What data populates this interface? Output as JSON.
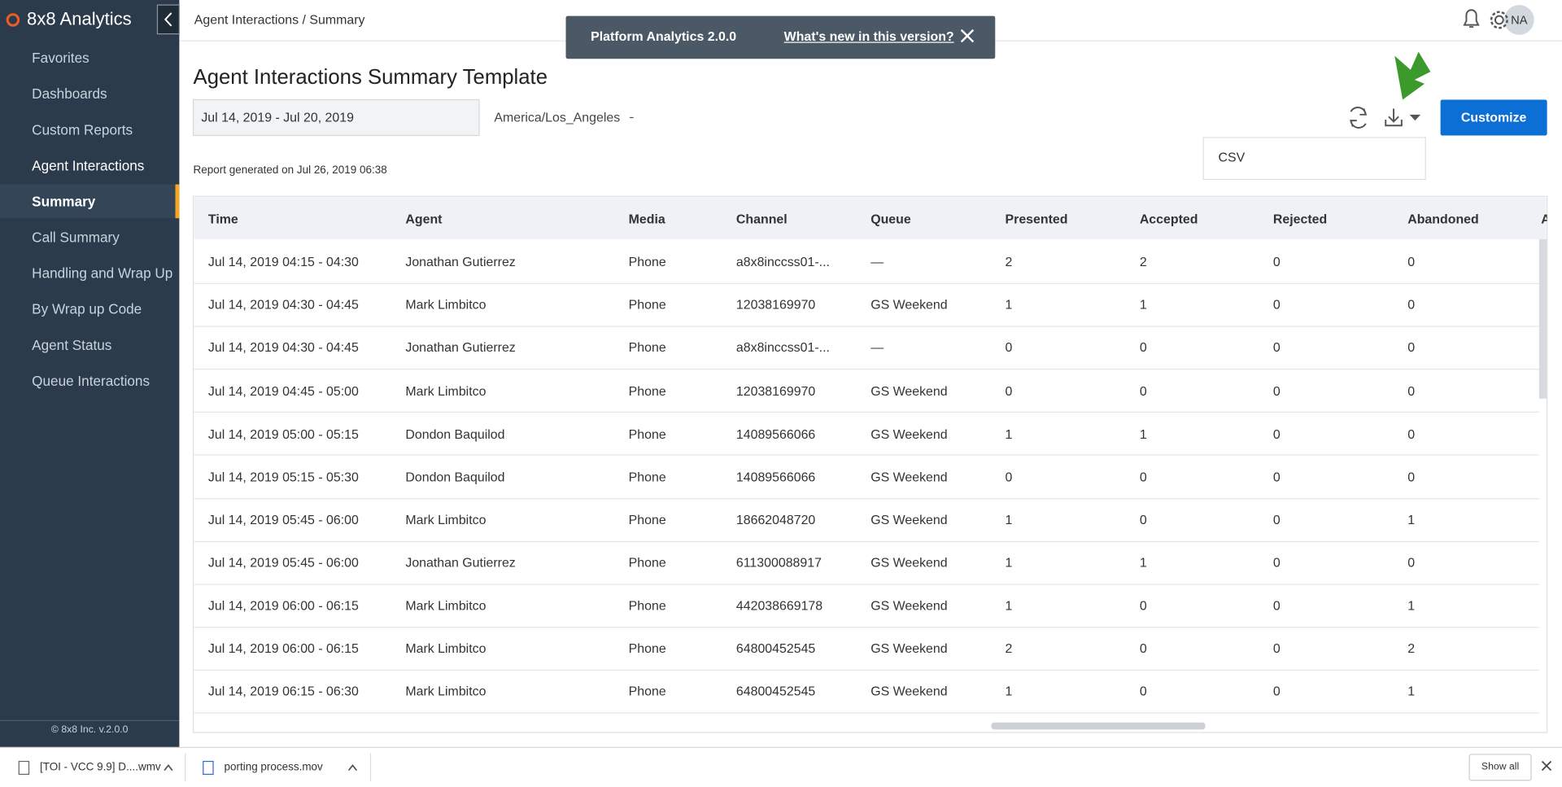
{
  "sidebar": {
    "logo": "8x8 Analytics",
    "items": [
      "Favorites",
      "Dashboards",
      "Custom Reports",
      "Agent Interactions"
    ],
    "sub_items": [
      "Summary",
      "Call Summary",
      "Handling and Wrap Up",
      "By Wrap up Code"
    ],
    "more_items": [
      "Agent Status",
      "Queue Interactions"
    ],
    "footer": "© 8x8 Inc. v.2.0.0"
  },
  "header": {
    "breadcrumb": "Agent Interactions / Summary",
    "avatar": "NA"
  },
  "banner": {
    "title": "Platform Analytics 2.0.0",
    "link": "What's new in this version?"
  },
  "page": {
    "title": "Agent Interactions Summary Template",
    "date_range": "Jul 14, 2019 - Jul 20, 2019",
    "timezone": "America/Los_Angeles",
    "report_generated": "Report generated on Jul 26, 2019 06:38",
    "customize": "Customize",
    "export_option": "CSV"
  },
  "table": {
    "columns": [
      "Time",
      "Agent",
      "Media",
      "Channel",
      "Queue",
      "Presented",
      "Accepted",
      "Rejected",
      "Abandoned",
      "A"
    ],
    "rows": [
      [
        "Jul 14, 2019 04:15 - 04:30",
        "Jonathan Gutierrez",
        "Phone",
        "a8x8inccss01-...",
        "—",
        "2",
        "2",
        "0",
        "0"
      ],
      [
        "Jul 14, 2019 04:30 - 04:45",
        "Mark Limbitco",
        "Phone",
        "12038169970",
        "GS Weekend",
        "1",
        "1",
        "0",
        "0"
      ],
      [
        "Jul 14, 2019 04:30 - 04:45",
        "Jonathan Gutierrez",
        "Phone",
        "a8x8inccss01-...",
        "—",
        "0",
        "0",
        "0",
        "0"
      ],
      [
        "Jul 14, 2019 04:45 - 05:00",
        "Mark Limbitco",
        "Phone",
        "12038169970",
        "GS Weekend",
        "0",
        "0",
        "0",
        "0"
      ],
      [
        "Jul 14, 2019 05:00 - 05:15",
        "Dondon Baquilod",
        "Phone",
        "14089566066",
        "GS Weekend",
        "1",
        "1",
        "0",
        "0"
      ],
      [
        "Jul 14, 2019 05:15 - 05:30",
        "Dondon Baquilod",
        "Phone",
        "14089566066",
        "GS Weekend",
        "0",
        "0",
        "0",
        "0"
      ],
      [
        "Jul 14, 2019 05:45 - 06:00",
        "Mark Limbitco",
        "Phone",
        "18662048720",
        "GS Weekend",
        "1",
        "0",
        "0",
        "1"
      ],
      [
        "Jul 14, 2019 05:45 - 06:00",
        "Jonathan Gutierrez",
        "Phone",
        "611300088917",
        "GS Weekend",
        "1",
        "1",
        "0",
        "0"
      ],
      [
        "Jul 14, 2019 06:00 - 06:15",
        "Mark Limbitco",
        "Phone",
        "442038669178",
        "GS Weekend",
        "1",
        "0",
        "0",
        "1"
      ],
      [
        "Jul 14, 2019 06:00 - 06:15",
        "Mark Limbitco",
        "Phone",
        "64800452545",
        "GS Weekend",
        "2",
        "0",
        "0",
        "2"
      ],
      [
        "Jul 14, 2019 06:15 - 06:30",
        "Mark Limbitco",
        "Phone",
        "64800452545",
        "GS Weekend",
        "1",
        "0",
        "0",
        "1"
      ]
    ]
  },
  "downloads": {
    "files": [
      "[TOI - VCC 9.9] D....wmv",
      "porting process.mov"
    ],
    "show_all": "Show all"
  }
}
